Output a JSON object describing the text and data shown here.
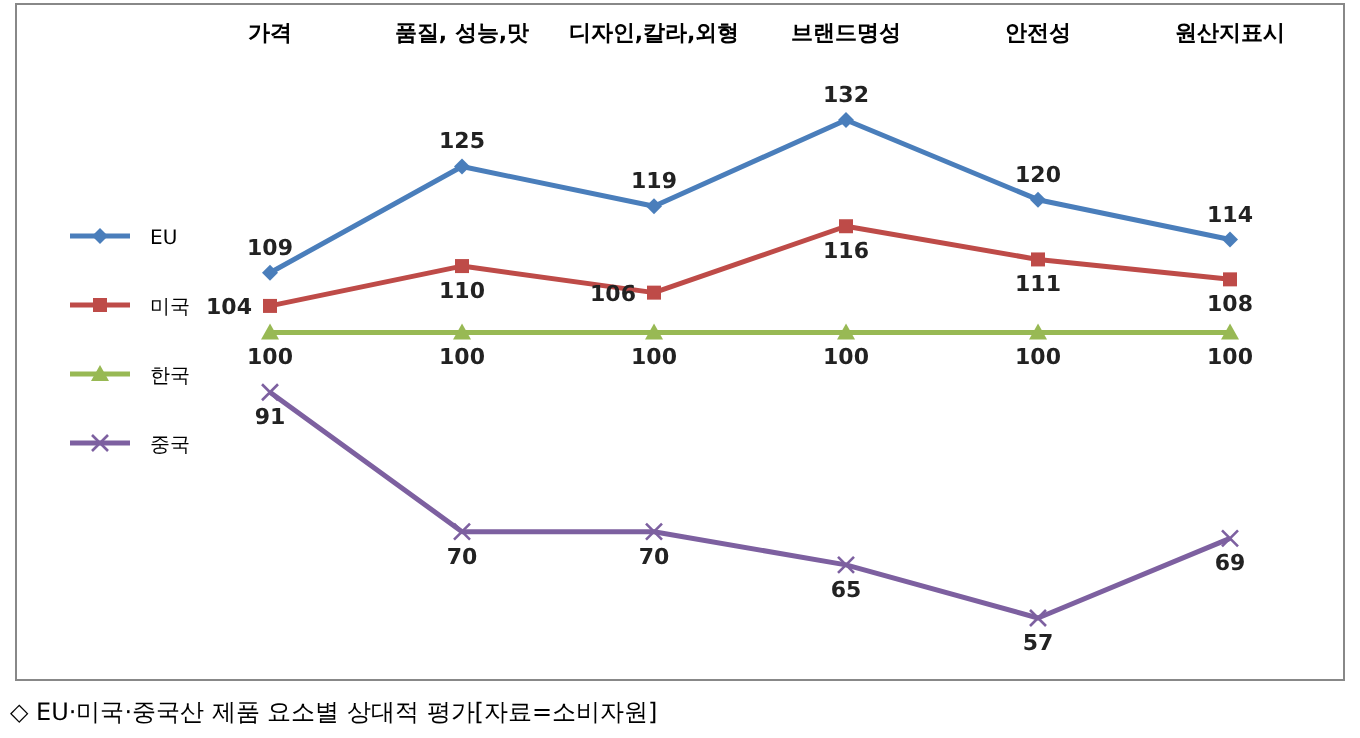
{
  "chart_data": {
    "type": "line",
    "categories": [
      "가격",
      "품질, 성능,맛",
      "디자인,칼라,외형",
      "브랜드명성",
      "안전성",
      "원산지표시"
    ],
    "series": [
      {
        "name": "EU",
        "color": "#4a7ebb",
        "marker": "diamond",
        "values": [
          109,
          125,
          119,
          132,
          120,
          114
        ]
      },
      {
        "name": "미국",
        "color": "#be4b48",
        "marker": "square",
        "values": [
          104,
          110,
          106,
          116,
          111,
          108
        ]
      },
      {
        "name": "한국",
        "color": "#98b954",
        "marker": "triangle",
        "values": [
          100,
          100,
          100,
          100,
          100,
          100
        ]
      },
      {
        "name": "중국",
        "color": "#7d60a0",
        "marker": "cross",
        "values": [
          91,
          70,
          70,
          65,
          57,
          69
        ]
      }
    ],
    "data_labels": true,
    "legend": "left",
    "annotations": [
      "◇ EU·미국·중국산 제품 요소별 상대적 평가[자료=소비자원]"
    ]
  }
}
